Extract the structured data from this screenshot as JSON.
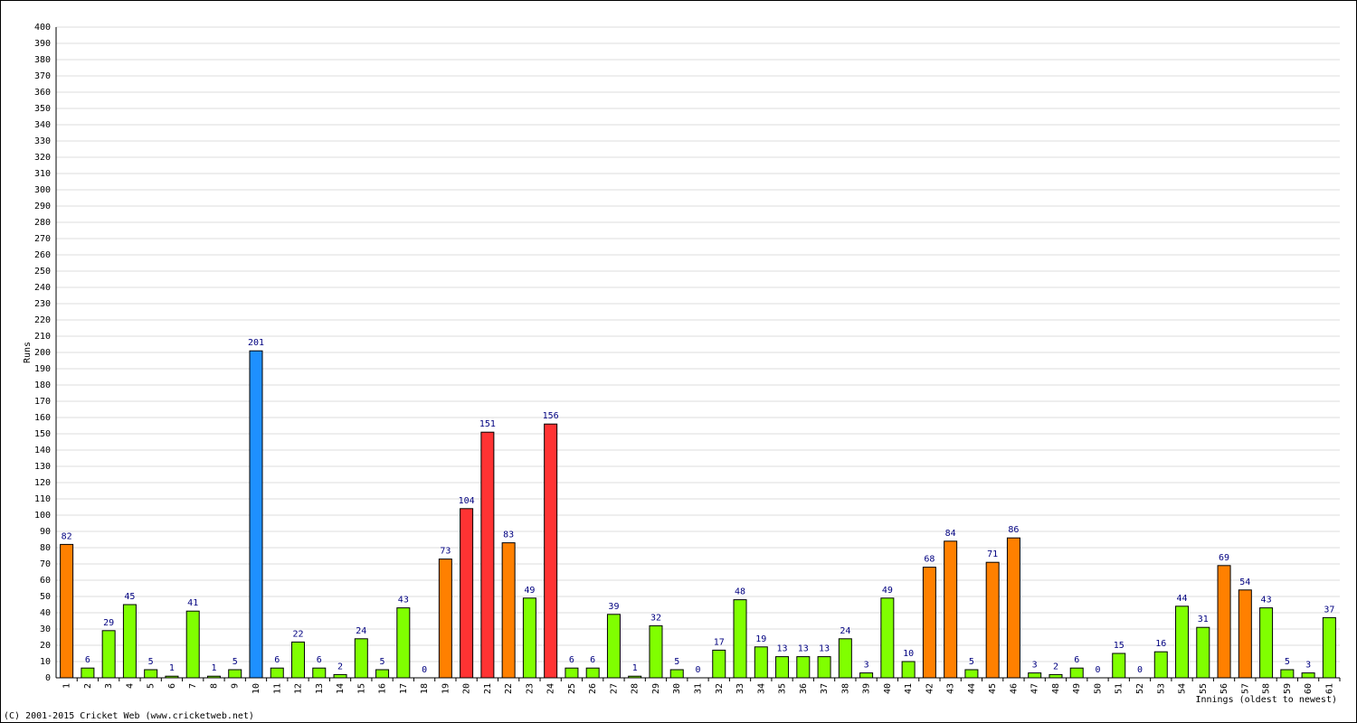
{
  "chart_data": {
    "type": "bar",
    "y_label": "Runs",
    "x_label": "Innings (oldest to newest)",
    "footer": "(C) 2001-2015 Cricket Web (www.cricketweb.net)",
    "categories": [
      "1",
      "2",
      "3",
      "4",
      "5",
      "6",
      "7",
      "8",
      "9",
      "10",
      "11",
      "12",
      "13",
      "14",
      "15",
      "16",
      "17",
      "18",
      "19",
      "20",
      "21",
      "22",
      "23",
      "24",
      "25",
      "26",
      "27",
      "28",
      "29",
      "30",
      "31",
      "32",
      "33",
      "34",
      "35",
      "36",
      "37",
      "38",
      "39",
      "40",
      "41",
      "42",
      "43",
      "44",
      "45",
      "46",
      "47",
      "48",
      "49",
      "50",
      "51",
      "52",
      "53",
      "54",
      "55",
      "56",
      "57",
      "58",
      "59",
      "60",
      "61"
    ],
    "values": [
      82,
      6,
      29,
      45,
      5,
      1,
      41,
      1,
      5,
      201,
      6,
      22,
      6,
      2,
      24,
      5,
      43,
      0,
      73,
      104,
      151,
      83,
      49,
      156,
      6,
      6,
      39,
      1,
      32,
      5,
      0,
      17,
      48,
      19,
      13,
      13,
      13,
      24,
      3,
      49,
      10,
      68,
      84,
      5,
      71,
      86,
      3,
      2,
      6,
      0,
      15,
      0,
      16,
      44,
      31,
      69,
      54,
      43,
      5,
      3,
      37
    ],
    "colors": [
      "#ff8000",
      "#80ff00",
      "#80ff00",
      "#80ff00",
      "#80ff00",
      "#80ff00",
      "#80ff00",
      "#80ff00",
      "#80ff00",
      "#1e90ff",
      "#80ff00",
      "#80ff00",
      "#80ff00",
      "#80ff00",
      "#80ff00",
      "#80ff00",
      "#80ff00",
      "#80ff00",
      "#ff8000",
      "#ff3333",
      "#ff3333",
      "#ff8000",
      "#80ff00",
      "#ff3333",
      "#80ff00",
      "#80ff00",
      "#80ff00",
      "#80ff00",
      "#80ff00",
      "#80ff00",
      "#80ff00",
      "#80ff00",
      "#80ff00",
      "#80ff00",
      "#80ff00",
      "#80ff00",
      "#80ff00",
      "#80ff00",
      "#80ff00",
      "#80ff00",
      "#80ff00",
      "#ff8000",
      "#ff8000",
      "#80ff00",
      "#ff8000",
      "#ff8000",
      "#80ff00",
      "#80ff00",
      "#80ff00",
      "#80ff00",
      "#80ff00",
      "#80ff00",
      "#80ff00",
      "#80ff00",
      "#80ff00",
      "#ff8000",
      "#ff8000",
      "#80ff00",
      "#80ff00",
      "#80ff00",
      "#80ff00"
    ],
    "ylim": [
      0,
      400
    ],
    "yticks": [
      0,
      10,
      20,
      30,
      40,
      50,
      60,
      70,
      80,
      90,
      100,
      110,
      120,
      130,
      140,
      150,
      160,
      170,
      180,
      190,
      200,
      210,
      220,
      230,
      240,
      250,
      260,
      270,
      280,
      290,
      300,
      310,
      320,
      330,
      340,
      350,
      360,
      370,
      380,
      390,
      400
    ],
    "grid": true
  }
}
